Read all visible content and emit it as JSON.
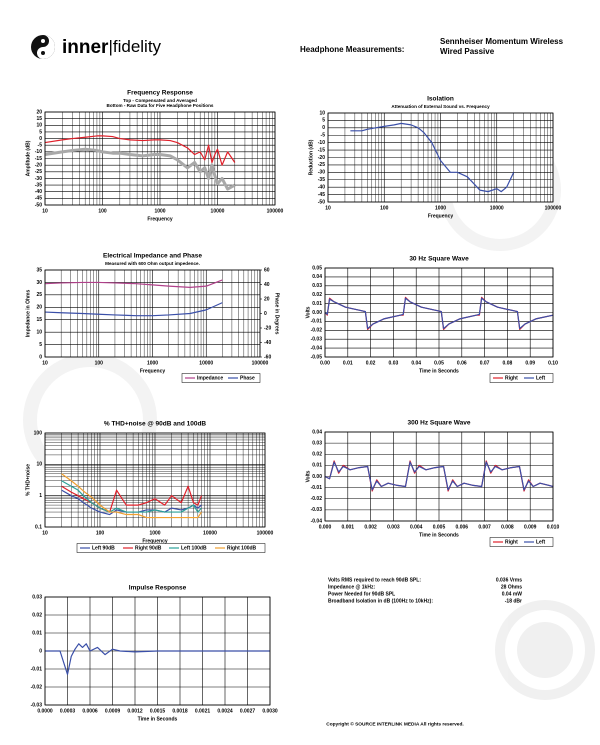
{
  "header": {
    "logo": [
      "inner",
      "|fidelity"
    ],
    "heading": "Headphone Measurements:",
    "product": [
      "Sennheiser Momentum Wireless",
      "Wired Passive"
    ]
  },
  "chart_data": [
    {
      "type": "line",
      "title": "Frequency Response",
      "subtitle": [
        "Top - Compensated and Averaged",
        "Bottom - Raw Data for Five Headphone Positions"
      ],
      "xlabel": "Frequency",
      "ylabel": "Amplitude (dB)",
      "xscale": "log",
      "grid": true,
      "minor_grid": true,
      "xlim": [
        10,
        100000
      ],
      "xticks": [
        10,
        100,
        1000,
        10000,
        100000
      ],
      "ylim": [
        -50,
        20
      ],
      "yticks": [
        20,
        15,
        10,
        5,
        0,
        -5,
        -10,
        -15,
        -20,
        -25,
        -30,
        -35,
        -40,
        -45,
        -50
      ],
      "x": [
        10,
        20,
        30,
        50,
        80,
        100,
        150,
        200,
        300,
        500,
        800,
        1000,
        1500,
        2000,
        3000,
        4000,
        5000,
        6000,
        7000,
        8000,
        9000,
        10000,
        12000,
        15000,
        20000
      ],
      "series": [
        {
          "color": "#a9a9a9",
          "width": 3,
          "values": [
            -12,
            -10,
            -9,
            -8,
            -9,
            -10,
            -11,
            -11,
            -12,
            -13,
            -12,
            -12,
            -13,
            -16,
            -22,
            -18,
            -25,
            -22,
            -30,
            -20,
            -28,
            -34,
            -30,
            -38,
            -35
          ]
        },
        {
          "color": "#e0202a",
          "width": 1.2,
          "values": [
            -3,
            -1,
            0,
            1,
            2,
            2,
            1.5,
            0,
            -1,
            -1.5,
            -1,
            -1,
            -1.5,
            -3,
            -7,
            -12,
            -10,
            -16,
            -5,
            -18,
            -12,
            -8,
            -20,
            -10,
            -18
          ]
        }
      ]
    },
    {
      "type": "line",
      "title": "Isolation",
      "subtitle": [
        "Attenuation of External Sound vs. Frequency"
      ],
      "xlabel": "Frequency",
      "ylabel": "Reduction (dB)",
      "xscale": "log",
      "grid": true,
      "minor_grid": true,
      "xlim": [
        10,
        100000
      ],
      "xticks": [
        10,
        100,
        1000,
        10000,
        100000
      ],
      "ylim": [
        -50,
        10
      ],
      "yticks": [
        10,
        5,
        0,
        -5,
        -10,
        -15,
        -20,
        -25,
        -30,
        -35,
        -40,
        -45,
        -50
      ],
      "x": [
        25,
        30,
        40,
        50,
        70,
        100,
        150,
        200,
        300,
        400,
        500,
        700,
        1000,
        1500,
        2000,
        3000,
        4000,
        5000,
        7000,
        10000,
        12000,
        15000,
        20000
      ],
      "series": [
        {
          "color": "#3a4fa8",
          "width": 1.2,
          "values": [
            -2,
            -2,
            -2,
            -1,
            0,
            1,
            2,
            3,
            2,
            0,
            -3,
            -10,
            -22,
            -30,
            -30,
            -33,
            -38,
            -42,
            -43,
            -41,
            -43,
            -40,
            -30
          ]
        }
      ]
    },
    {
      "type": "line",
      "title": "Electrical Impedance and Phase",
      "subtitle": [
        "Measured with 600 Ohm output impedence."
      ],
      "xlabel": "Frequency",
      "ylabel": "Impedance in Ohms",
      "y2label": "Phase in Degrees",
      "xscale": "log",
      "grid": true,
      "minor_grid": true,
      "legend": "bottom-right",
      "xlim": [
        10,
        100000
      ],
      "xticks": [
        10,
        100,
        1000,
        10000,
        100000
      ],
      "ylim": [
        0,
        35
      ],
      "yticks": [
        35,
        30,
        25,
        20,
        15,
        10,
        5,
        0
      ],
      "y2lim": [
        -60,
        60
      ],
      "y2ticks": [
        60,
        40,
        20,
        0,
        -20,
        -40,
        -60
      ],
      "x": [
        10,
        20,
        50,
        100,
        200,
        500,
        1000,
        2000,
        5000,
        10000,
        20000
      ],
      "series": [
        {
          "name": "Impedance",
          "color": "#b0408a",
          "width": 1.2,
          "values": [
            29.5,
            29.8,
            30,
            30,
            29.8,
            29.5,
            29,
            28.5,
            28,
            28.5,
            31
          ]
        },
        {
          "name": "Phase",
          "color": "#3a4fa8",
          "width": 1.2,
          "axis": "y2",
          "values": [
            2,
            1,
            0,
            -1,
            -2,
            -3,
            -3,
            -2,
            0,
            5,
            15
          ]
        }
      ]
    },
    {
      "type": "line",
      "title": "30 Hz Square Wave",
      "xlabel": "Time in Seconds",
      "ylabel": "Volts",
      "grid": true,
      "legend": "bottom-right",
      "xlim": [
        0,
        0.1
      ],
      "xticks": [
        {
          "value": 0,
          "label": "0.00"
        },
        0.01,
        0.02,
        0.03,
        0.04,
        0.05,
        0.06,
        0.07,
        0.08,
        0.09,
        {
          "value": 0.1,
          "label": "0.10"
        }
      ],
      "ylim": [
        -0.05,
        0.05
      ],
      "yticks": [
        0.05,
        0.04,
        0.03,
        0.02,
        0.01,
        {
          "value": 0,
          "label": "0.00"
        },
        -0.01,
        -0.02,
        -0.03,
        -0.04,
        -0.05
      ],
      "x": [
        0,
        0.001,
        0.002,
        0.004,
        0.009,
        0.016,
        0.0177,
        0.0187,
        0.021,
        0.026,
        0.033,
        0.0343,
        0.0353,
        0.0373,
        0.0423,
        0.0493,
        0.051,
        0.052,
        0.0543,
        0.0593,
        0.0663,
        0.0677,
        0.0687,
        0.0707,
        0.0757,
        0.0827,
        0.0844,
        0.0854,
        0.0877,
        0.0927,
        0.1
      ],
      "series": [
        {
          "name": "Right",
          "color": "#e0202a",
          "width": 1.2,
          "values": [
            0,
            -0.003,
            0.016,
            0.012,
            0.006,
            0.002,
            0.001,
            -0.019,
            -0.013,
            -0.007,
            -0.003,
            -0.003,
            0.017,
            0.012,
            0.006,
            0.002,
            0.001,
            -0.019,
            -0.013,
            -0.007,
            -0.003,
            -0.003,
            0.017,
            0.012,
            0.006,
            0.002,
            0.001,
            -0.019,
            -0.013,
            -0.007,
            -0.003
          ]
        },
        {
          "name": "Left",
          "color": "#3a4fa8",
          "width": 1.2,
          "values": [
            0,
            -0.002,
            0.015,
            0.012,
            0.006,
            0.002,
            0.001,
            -0.018,
            -0.013,
            -0.007,
            -0.003,
            -0.002,
            0.016,
            0.012,
            0.006,
            0.002,
            0.001,
            -0.018,
            -0.013,
            -0.007,
            -0.003,
            -0.002,
            0.016,
            0.012,
            0.006,
            0.002,
            0.001,
            -0.018,
            -0.013,
            -0.007,
            -0.003
          ]
        }
      ]
    },
    {
      "type": "line",
      "title": "% THD+noise @ 90dB and 100dB",
      "xlabel": "Frequency",
      "ylabel": "% THD+noise",
      "xscale": "log",
      "yscale": "log",
      "grid": true,
      "minor_grid": true,
      "legend": "bottom-right",
      "xlim": [
        10,
        100000
      ],
      "xticks": [
        10,
        100,
        1000,
        10000,
        100000
      ],
      "ylim": [
        0.1,
        100
      ],
      "yticks": [
        100,
        10,
        1,
        0.1
      ],
      "x": [
        20,
        30,
        40,
        50,
        70,
        100,
        150,
        200,
        300,
        500,
        700,
        1000,
        1500,
        2000,
        3000,
        4000,
        5000,
        6000,
        7000
      ],
      "series": [
        {
          "name": "Left 90dB",
          "color": "#3a4fa8",
          "width": 1.2,
          "values": [
            1.5,
            1,
            0.8,
            0.6,
            0.4,
            0.3,
            0.25,
            0.35,
            0.3,
            0.3,
            0.35,
            0.35,
            0.3,
            0.4,
            0.35,
            0.4,
            0.5,
            0.4,
            0.5
          ]
        },
        {
          "name": "Right 90dB",
          "color": "#e0202a",
          "width": 1.2,
          "values": [
            2,
            1.3,
            1,
            0.8,
            0.6,
            0.4,
            0.3,
            1.5,
            0.5,
            0.5,
            0.6,
            0.8,
            0.5,
            1,
            0.6,
            2,
            0.6,
            0.5,
            1
          ]
        },
        {
          "name": "Left 100dB",
          "color": "#2aa198",
          "width": 1.2,
          "values": [
            3,
            2,
            1.5,
            1,
            0.6,
            0.4,
            0.3,
            0.4,
            0.3,
            0.3,
            0.3,
            0.35,
            0.3,
            0.3,
            0.3,
            0.4,
            0.5,
            0.3,
            0.4
          ]
        },
        {
          "name": "Right 100dB",
          "color": "#f0a030",
          "width": 1.2,
          "values": [
            5,
            3,
            2,
            1.4,
            0.9,
            0.5,
            0.3,
            0.3,
            0.25,
            0.25,
            0.2,
            0.2,
            0.2,
            0.2,
            0.2,
            0.2,
            0.2,
            0.2,
            0.3
          ]
        }
      ]
    },
    {
      "type": "line",
      "title": "300 Hz Square Wave",
      "xlabel": "Time in Seconds",
      "ylabel": "Volts",
      "grid": true,
      "legend": "bottom-right",
      "xlim": [
        0,
        0.01
      ],
      "xticks": [
        {
          "value": 0,
          "label": "0.000"
        },
        0.001,
        0.002,
        0.003,
        0.004,
        0.005,
        0.006,
        0.007,
        0.008,
        0.009,
        {
          "value": 0.01,
          "label": "0.010"
        }
      ],
      "ylim": [
        -0.04,
        0.04
      ],
      "yticks": [
        0.04,
        0.03,
        0.02,
        0.01,
        {
          "value": 0,
          "label": "0.00"
        },
        -0.01,
        -0.02,
        -0.03,
        -0.04
      ],
      "x": [
        0,
        0.0002,
        0.0004,
        0.0006,
        0.0008,
        0.0011,
        0.0015,
        0.00187,
        0.00207,
        0.00227,
        0.00247,
        0.00277,
        0.00317,
        0.00353,
        0.00373,
        0.00393,
        0.00413,
        0.00443,
        0.00483,
        0.0052,
        0.0054,
        0.0056,
        0.0058,
        0.0061,
        0.0065,
        0.00687,
        0.00707,
        0.00727,
        0.00747,
        0.00777,
        0.00817,
        0.00853,
        0.00873,
        0.00893,
        0.00913,
        0.00943,
        0.00983,
        0.01
      ],
      "series": [
        {
          "name": "Right",
          "color": "#e0202a",
          "width": 1.2,
          "values": [
            0,
            -0.002,
            0.014,
            0.003,
            0.01,
            0.006,
            0.008,
            0.009,
            -0.013,
            -0.003,
            -0.009,
            -0.006,
            -0.008,
            -0.009,
            0.014,
            0.003,
            0.01,
            0.006,
            0.008,
            0.009,
            -0.013,
            -0.003,
            -0.009,
            -0.006,
            -0.008,
            -0.009,
            0.014,
            0.003,
            0.01,
            0.006,
            0.008,
            0.009,
            -0.013,
            -0.003,
            -0.009,
            -0.006,
            -0.008,
            -0.009
          ]
        },
        {
          "name": "Left",
          "color": "#3a4fa8",
          "width": 1.2,
          "values": [
            0,
            -0.002,
            0.013,
            0.004,
            0.009,
            0.006,
            0.008,
            0.009,
            -0.012,
            -0.004,
            -0.009,
            -0.006,
            -0.008,
            -0.009,
            0.013,
            0.004,
            0.009,
            0.006,
            0.008,
            0.009,
            -0.012,
            -0.004,
            -0.009,
            -0.006,
            -0.008,
            -0.009,
            0.013,
            0.004,
            0.009,
            0.006,
            0.008,
            0.009,
            -0.012,
            -0.004,
            -0.009,
            -0.006,
            -0.008,
            -0.009
          ]
        }
      ]
    },
    {
      "type": "line",
      "title": "Impulse Response",
      "xlabel": "Time in Seconds",
      "grid": true,
      "xlim": [
        0,
        0.003
      ],
      "xticks": [
        {
          "value": 0,
          "label": "0.0000"
        },
        0.0003,
        0.0006,
        0.0009,
        0.0012,
        0.0015,
        0.0018,
        0.0021,
        0.0024,
        0.0027,
        {
          "value": 0.003,
          "label": "0.0030"
        }
      ],
      "ylim": [
        -0.03,
        0.03
      ],
      "yticks": [
        0.03,
        0.02,
        0.01,
        0,
        -0.01,
        -0.02,
        -0.03
      ],
      "x": [
        0,
        0.0002,
        0.0003,
        0.00035,
        0.0004,
        0.00045,
        0.0005,
        0.00055,
        0.0006,
        0.0007,
        0.0008,
        0.0009,
        0.001,
        0.0012,
        0.0015,
        0.003
      ],
      "series": [
        {
          "color": "#3a4fa8",
          "width": 1.2,
          "values": [
            0,
            0,
            -0.013,
            -0.003,
            0.001,
            0.004,
            0.002,
            0.004,
            0,
            0.002,
            -0.002,
            0.001,
            0,
            -0.0005,
            0,
            0
          ]
        }
      ]
    }
  ],
  "specs": [
    [
      "Volts RMS required to reach 90dB SPL:",
      "0.036 Vrms"
    ],
    [
      "Impedance @ 1kHz:",
      "28 Ohms"
    ],
    [
      "Power Needed for 90dB SPL",
      "0.04 mW"
    ],
    [
      "Broadband Isolation in dB (100Hz to 10kHz):",
      "-18 dBr"
    ]
  ],
  "footer": "Copyright © SOURCE INTERLINK MEDIA All rights reserved."
}
